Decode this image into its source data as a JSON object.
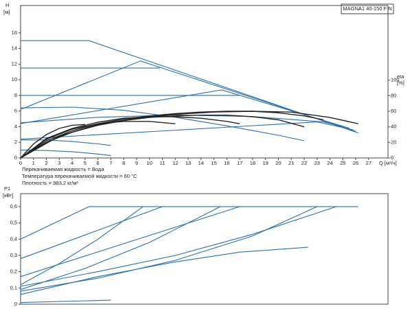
{
  "chart_data": [
    {
      "type": "line",
      "title": "MAGNA1 40-150 F N",
      "ylabel": "H",
      "yunit": "[м]",
      "y2label": "eta",
      "y2unit": "[%]",
      "xlabel": "Q [м³/ч]",
      "notes": [
        "Перекачиваемая жидкость = Вода",
        "Температура перекачиваемой жидкости = 60 °C",
        "Плотность = 983.2 кг/м³"
      ],
      "xlim": [
        0,
        28.5
      ],
      "xticks": [
        0,
        1,
        2,
        3,
        4,
        5,
        6,
        7,
        8,
        9,
        10,
        11,
        12,
        13,
        14,
        15,
        16,
        17,
        18,
        19,
        20,
        21,
        22,
        23,
        24,
        25,
        26,
        27
      ],
      "ylim": [
        0,
        19.5
      ],
      "yticks": [
        0,
        2,
        4,
        6,
        8,
        10,
        12,
        14,
        16
      ],
      "y2lim": [
        0,
        196
      ],
      "y2ticks": [
        0,
        20,
        40,
        60,
        80,
        100
      ],
      "grid": false,
      "series": [
        {
          "color": "#2a6fa8",
          "x": [
            0,
            5.3,
            26.2
          ],
          "values": [
            15,
            15,
            3.2
          ]
        },
        {
          "color": "#2a6fa8",
          "x": [
            0,
            10.8
          ],
          "values": [
            11.5,
            11.5
          ]
        },
        {
          "color": "#2a6fa8",
          "x": [
            0,
            17
          ],
          "values": [
            8,
            8
          ]
        },
        {
          "color": "#2a6fa8",
          "x": [
            0,
            9.3,
            26
          ],
          "values": [
            6.2,
            12.4,
            3.4
          ]
        },
        {
          "color": "#2a6fa8",
          "x": [
            0,
            15.6,
            25.5
          ],
          "values": [
            4.4,
            8.7,
            3.8
          ]
        },
        {
          "color": "#2a6fa8",
          "x": [
            0,
            23,
            25.8
          ],
          "values": [
            2.4,
            4.6,
            3.6
          ]
        },
        {
          "color": "#2a6fa8",
          "x": [
            0,
            4,
            8,
            12,
            16,
            20,
            22
          ],
          "values": [
            6.4,
            6.5,
            6.1,
            5.2,
            4.1,
            2.9,
            2.2
          ]
        },
        {
          "color": "#2a6fa8",
          "x": [
            0,
            6,
            12,
            18,
            23.5,
            25
          ],
          "values": [
            4.5,
            5.2,
            5.5,
            5.3,
            4.6,
            4.0
          ]
        },
        {
          "color": "#2a6fa8",
          "x": [
            0,
            2,
            4,
            6,
            7
          ],
          "values": [
            2.3,
            2.3,
            2.1,
            1.8,
            1.6
          ]
        },
        {
          "color": "#2a6fa8",
          "x": [
            0,
            2,
            4,
            6,
            7
          ],
          "values": [
            1.0,
            0.95,
            0.8,
            0.5,
            0.3
          ]
        },
        {
          "color": "#222222",
          "axis": "y2",
          "x": [
            0,
            3,
            6,
            9,
            12,
            15,
            18,
            21,
            24,
            26.2
          ],
          "values": [
            0,
            28,
            43,
            51,
            56,
            59,
            60,
            59,
            52,
            44
          ]
        },
        {
          "color": "#222222",
          "axis": "y2",
          "x": [
            0,
            2,
            4,
            6,
            8,
            10,
            12,
            14,
            16,
            18,
            20,
            22,
            23.5
          ],
          "values": [
            0,
            22,
            35,
            44,
            50,
            54,
            57,
            59,
            60,
            60,
            58,
            54,
            49
          ]
        },
        {
          "color": "#222222",
          "axis": "y2",
          "x": [
            0,
            2,
            4,
            6,
            8,
            10,
            12,
            14,
            16,
            18,
            20,
            22
          ],
          "values": [
            0,
            20,
            33,
            42,
            48,
            52,
            54,
            55,
            55,
            53,
            49,
            40
          ]
        },
        {
          "color": "#222222",
          "axis": "y2",
          "x": [
            0,
            2,
            4,
            6,
            8,
            10,
            12,
            14,
            16,
            17
          ],
          "values": [
            0,
            25,
            38,
            46,
            51,
            53,
            53,
            51,
            47,
            44
          ]
        },
        {
          "color": "#222222",
          "axis": "y2",
          "x": [
            0,
            2,
            4,
            6,
            8,
            10,
            12
          ],
          "values": [
            0,
            24,
            37,
            44,
            47,
            47,
            44
          ]
        },
        {
          "color": "#222222",
          "axis": "y2",
          "x": [
            0,
            1,
            2,
            3,
            4,
            5
          ],
          "values": [
            0,
            18,
            30,
            38,
            42,
            43
          ]
        }
      ]
    },
    {
      "type": "line",
      "ylabel": "P1",
      "yunit": "[кВт]",
      "xlim": [
        0,
        28.5
      ],
      "ylim": [
        0,
        0.68
      ],
      "yticks": [
        0,
        {
          "value": 0.1,
          "label": "0,1"
        },
        {
          "value": 0.2,
          "label": "0,2"
        },
        {
          "value": 0.3,
          "label": "0,3"
        },
        {
          "value": 0.4,
          "label": "0,4"
        },
        {
          "value": 0.5,
          "label": "0,5"
        },
        {
          "value": 0.6,
          "label": "0,6"
        }
      ],
      "grid": false,
      "series": [
        {
          "color": "#2a6fa8",
          "x": [
            0,
            5.3,
            26.2
          ],
          "values": [
            0.4,
            0.6,
            0.6
          ]
        },
        {
          "color": "#2a6fa8",
          "x": [
            0,
            11
          ],
          "values": [
            0.28,
            0.6
          ]
        },
        {
          "color": "#2a6fa8",
          "x": [
            0,
            17
          ],
          "values": [
            0.17,
            0.6
          ]
        },
        {
          "color": "#2a6fa8",
          "x": [
            0,
            6,
            12,
            18,
            24.5
          ],
          "values": [
            0.11,
            0.2,
            0.3,
            0.43,
            0.6
          ]
        },
        {
          "color": "#2a6fa8",
          "x": [
            0,
            6,
            12,
            18,
            23
          ],
          "values": [
            0.08,
            0.16,
            0.27,
            0.42,
            0.6
          ]
        },
        {
          "color": "#2a6fa8",
          "x": [
            0,
            3,
            6,
            9.5
          ],
          "values": [
            0.12,
            0.25,
            0.4,
            0.6
          ]
        },
        {
          "color": "#2a6fa8",
          "x": [
            0,
            5,
            10,
            15.5
          ],
          "values": [
            0.09,
            0.22,
            0.38,
            0.6
          ]
        },
        {
          "color": "#2a6fa8",
          "x": [
            0,
            6,
            12,
            17,
            22.3
          ],
          "values": [
            0.06,
            0.17,
            0.26,
            0.32,
            0.35
          ]
        },
        {
          "color": "#2a6fa8",
          "x": [
            0,
            7
          ],
          "values": [
            0.01,
            0.025
          ]
        }
      ]
    }
  ]
}
